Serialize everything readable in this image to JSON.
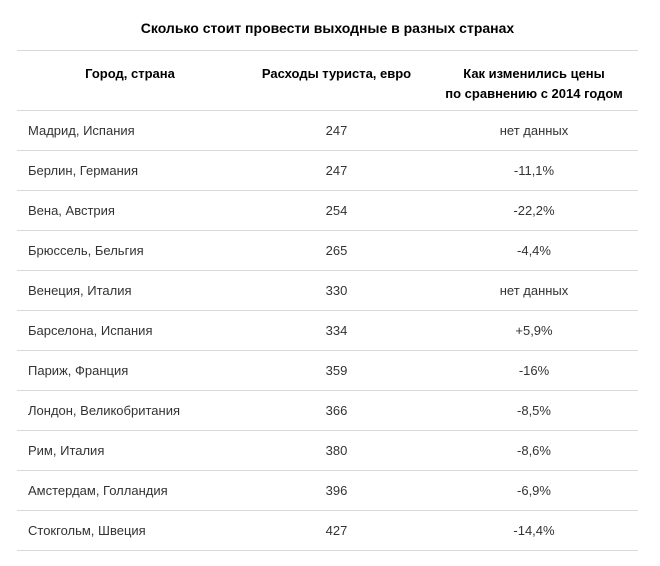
{
  "page": {
    "title": "Сколько стоит провести выходные в разных странах"
  },
  "colors": {
    "background": "#ffffff",
    "title_text": "#000000",
    "header_text": "#000000",
    "body_text": "#333333",
    "divider": "#d9d9d9"
  },
  "table": {
    "headers": {
      "city": "Город, страна",
      "expense": "Расходы туриста, евро",
      "change_line1": "Как изменились цены",
      "change_line2": "по сравнению с 2014 годом"
    },
    "rows": [
      {
        "city": "Мадрид, Испания",
        "expense": "247",
        "change": "нет данных"
      },
      {
        "city": "Берлин, Германия",
        "expense": "247",
        "change": "-11,1%"
      },
      {
        "city": "Вена, Австрия",
        "expense": "254",
        "change": "-22,2%"
      },
      {
        "city": "Брюссель, Бельгия",
        "expense": "265",
        "change": "-4,4%"
      },
      {
        "city": "Венеция, Италия",
        "expense": "330",
        "change": "нет данных"
      },
      {
        "city": "Барселона, Испания",
        "expense": "334",
        "change": "+5,9%"
      },
      {
        "city": "Париж, Франция",
        "expense": "359",
        "change": "-16%"
      },
      {
        "city": "Лондон, Великобритания",
        "expense": "366",
        "change": "-8,5%"
      },
      {
        "city": "Рим, Италия",
        "expense": "380",
        "change": "-8,6%"
      },
      {
        "city": "Амстердам, Голландия",
        "expense": "396",
        "change": "-6,9%"
      },
      {
        "city": "Стокгольм, Швеция",
        "expense": "427",
        "change": "-14,4%"
      }
    ]
  },
  "chart_data": {
    "type": "table",
    "title": "Сколько стоит провести выходные в разных странах",
    "columns": [
      "Город, страна",
      "Расходы туриста, евро",
      "Как изменились цены по сравнению с 2014 годом"
    ],
    "rows": [
      [
        "Мадрид, Испания",
        247,
        "нет данных"
      ],
      [
        "Берлин, Германия",
        247,
        "-11,1%"
      ],
      [
        "Вена, Австрия",
        254,
        "-22,2%"
      ],
      [
        "Брюссель, Бельгия",
        265,
        "-4,4%"
      ],
      [
        "Венеция, Италия",
        330,
        "нет данных"
      ],
      [
        "Барселона, Испания",
        334,
        "+5,9%"
      ],
      [
        "Париж, Франция",
        359,
        "-16%"
      ],
      [
        "Лондон, Великобритания",
        366,
        "-8,5%"
      ],
      [
        "Рим, Италия",
        380,
        "-8,6%"
      ],
      [
        "Амстердам, Голландия",
        396,
        "-6,9%"
      ],
      [
        "Стокгольм, Швеция",
        427,
        "-14,4%"
      ]
    ],
    "expense_eur": [
      247,
      247,
      254,
      265,
      330,
      334,
      359,
      366,
      380,
      396,
      427
    ],
    "change_vs_2014_pct": [
      null,
      -11.1,
      -22.2,
      -4.4,
      null,
      5.9,
      -16,
      -8.5,
      -8.6,
      -6.9,
      -14.4
    ],
    "layout": {
      "sort": "ascending by expense",
      "grid": "horizontal row dividers only"
    }
  }
}
